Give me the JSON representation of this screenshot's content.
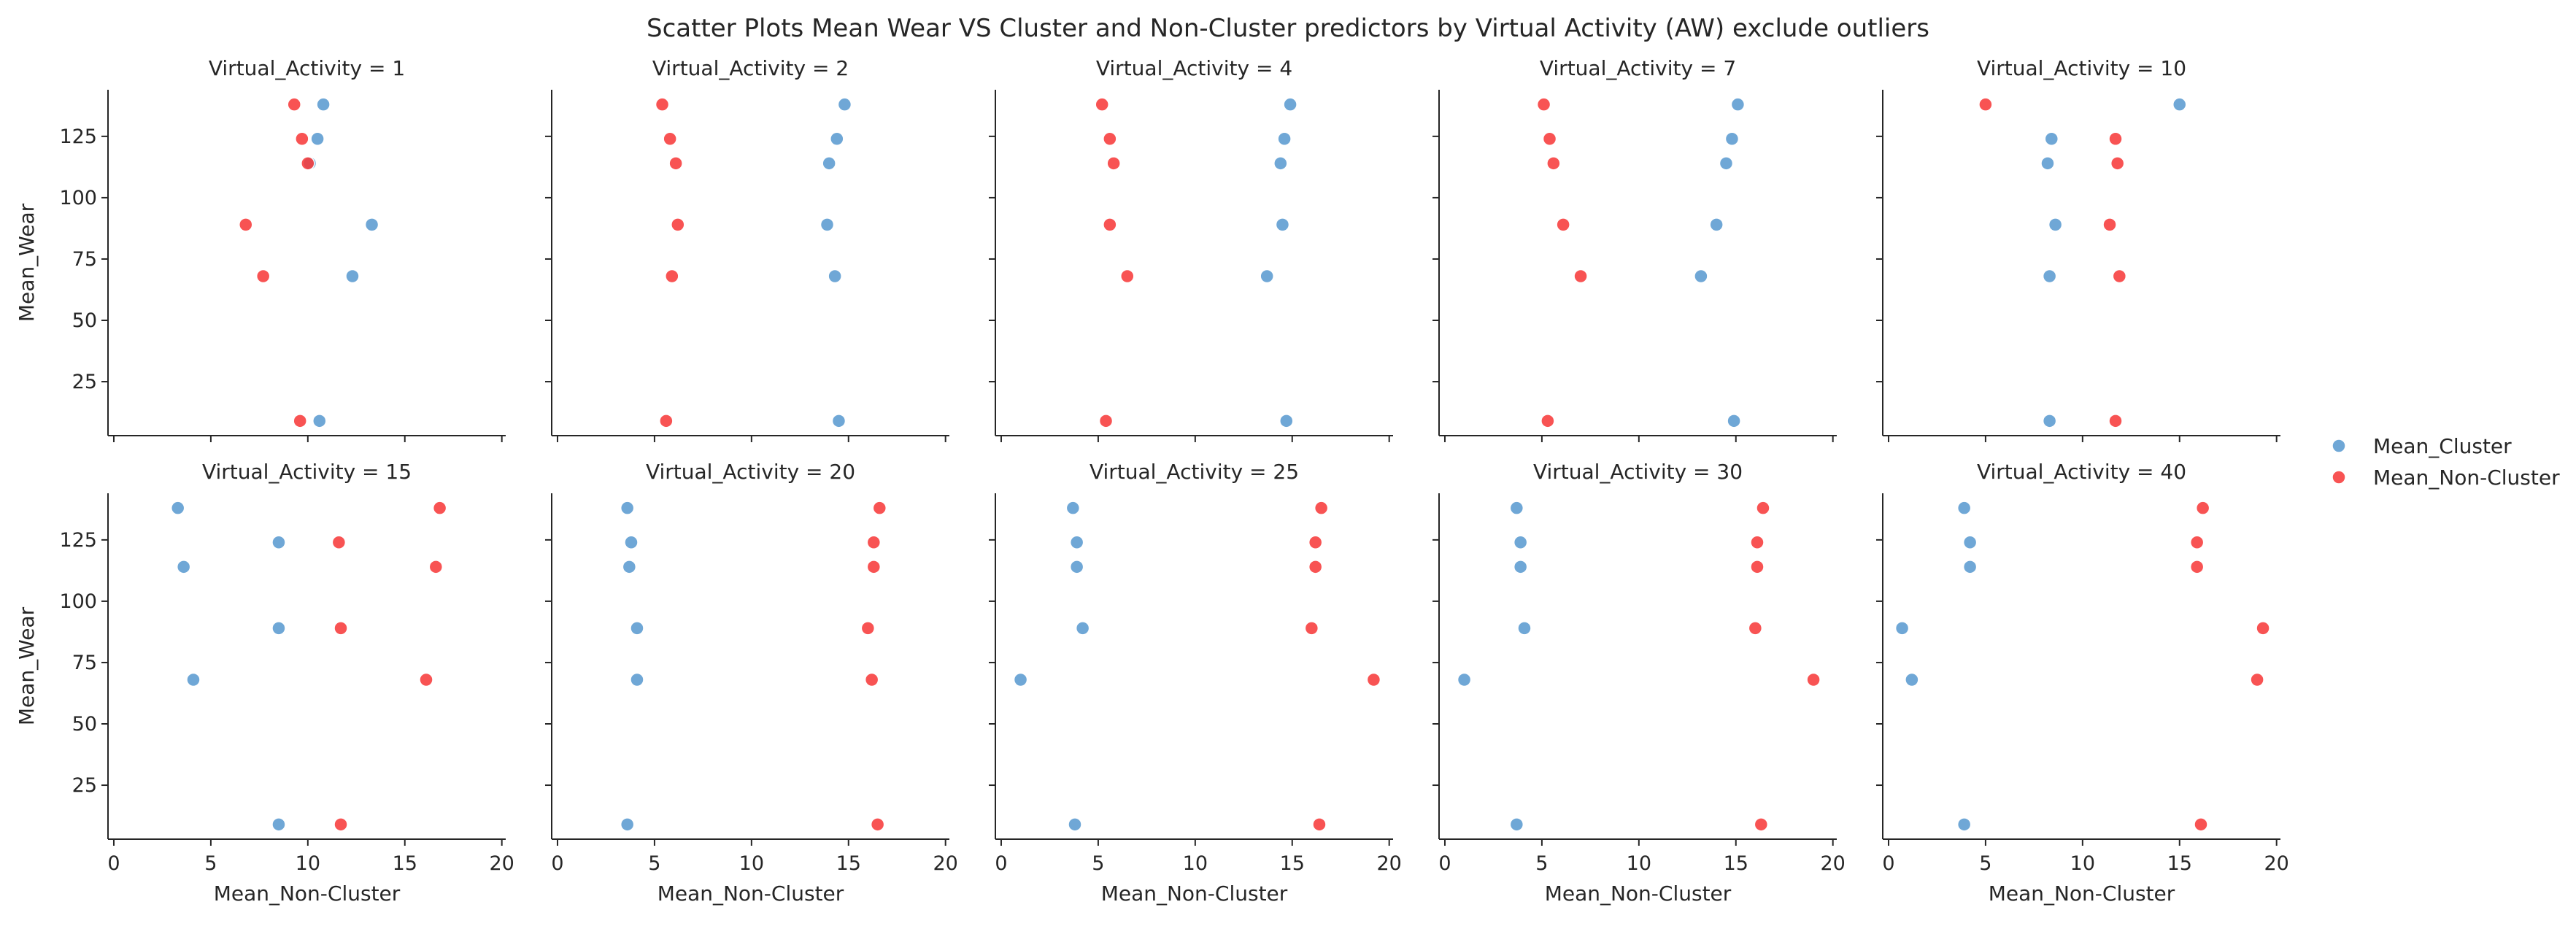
{
  "chart_data": {
    "type": "scatter",
    "title": "Scatter Plots Mean Wear VS Cluster and Non-Cluster predictors by Virtual Activity (AW) exclude outliers",
    "facet_title_prefix": "Virtual_Activity = ",
    "xlabel": "Mean_Non-Cluster",
    "ylabel": "Mean_Wear",
    "xlim": [
      -0.3,
      20.2
    ],
    "ylim": [
      3,
      144
    ],
    "xticks": [
      0,
      5,
      10,
      15,
      20
    ],
    "yticks": [
      25,
      50,
      75,
      100,
      125
    ],
    "legend_position": "right",
    "series": [
      {
        "name": "Mean_Cluster",
        "color": "#5b9bd0"
      },
      {
        "name": "Mean_Non-Cluster",
        "color": "#f73b3b"
      }
    ],
    "panels": [
      {
        "facet": "1",
        "Mean_Cluster": [
          [
            10.8,
            138
          ],
          [
            10.5,
            124
          ],
          [
            10.1,
            114
          ],
          [
            13.3,
            89
          ],
          [
            12.3,
            68
          ],
          [
            10.6,
            9
          ]
        ],
        "Mean_Non-Cluster": [
          [
            9.3,
            138
          ],
          [
            9.7,
            124
          ],
          [
            10.0,
            114
          ],
          [
            6.8,
            89
          ],
          [
            7.7,
            68
          ],
          [
            9.6,
            9
          ]
        ]
      },
      {
        "facet": "2",
        "Mean_Cluster": [
          [
            14.8,
            138
          ],
          [
            14.4,
            124
          ],
          [
            14.0,
            114
          ],
          [
            13.9,
            89
          ],
          [
            14.3,
            68
          ],
          [
            14.5,
            9
          ]
        ],
        "Mean_Non-Cluster": [
          [
            5.4,
            138
          ],
          [
            5.8,
            124
          ],
          [
            6.1,
            114
          ],
          [
            6.2,
            89
          ],
          [
            5.9,
            68
          ],
          [
            5.6,
            9
          ]
        ]
      },
      {
        "facet": "4",
        "Mean_Cluster": [
          [
            14.9,
            138
          ],
          [
            14.6,
            124
          ],
          [
            14.4,
            114
          ],
          [
            14.5,
            89
          ],
          [
            13.7,
            68
          ],
          [
            14.7,
            9
          ]
        ],
        "Mean_Non-Cluster": [
          [
            5.2,
            138
          ],
          [
            5.6,
            124
          ],
          [
            5.8,
            114
          ],
          [
            5.6,
            89
          ],
          [
            6.5,
            68
          ],
          [
            5.4,
            9
          ]
        ]
      },
      {
        "facet": "7",
        "Mean_Cluster": [
          [
            15.1,
            138
          ],
          [
            14.8,
            124
          ],
          [
            14.5,
            114
          ],
          [
            14.0,
            89
          ],
          [
            13.2,
            68
          ],
          [
            14.9,
            9
          ]
        ],
        "Mean_Non-Cluster": [
          [
            5.1,
            138
          ],
          [
            5.4,
            124
          ],
          [
            5.6,
            114
          ],
          [
            6.1,
            89
          ],
          [
            7.0,
            68
          ],
          [
            5.3,
            9
          ]
        ]
      },
      {
        "facet": "10",
        "Mean_Cluster": [
          [
            15.0,
            138
          ],
          [
            8.4,
            124
          ],
          [
            8.2,
            114
          ],
          [
            8.6,
            89
          ],
          [
            8.3,
            68
          ],
          [
            8.3,
            9
          ]
        ],
        "Mean_Non-Cluster": [
          [
            5.0,
            138
          ],
          [
            11.7,
            124
          ],
          [
            11.8,
            114
          ],
          [
            11.4,
            89
          ],
          [
            11.9,
            68
          ],
          [
            11.7,
            9
          ]
        ]
      },
      {
        "facet": "15",
        "Mean_Cluster": [
          [
            3.3,
            138
          ],
          [
            8.5,
            124
          ],
          [
            3.6,
            114
          ],
          [
            8.5,
            89
          ],
          [
            4.1,
            68
          ],
          [
            8.5,
            9
          ]
        ],
        "Mean_Non-Cluster": [
          [
            16.8,
            138
          ],
          [
            11.6,
            124
          ],
          [
            16.6,
            114
          ],
          [
            11.7,
            89
          ],
          [
            16.1,
            68
          ],
          [
            11.7,
            9
          ]
        ]
      },
      {
        "facet": "20",
        "Mean_Cluster": [
          [
            3.6,
            138
          ],
          [
            3.8,
            124
          ],
          [
            3.7,
            114
          ],
          [
            4.1,
            89
          ],
          [
            4.1,
            68
          ],
          [
            3.6,
            9
          ]
        ],
        "Mean_Non-Cluster": [
          [
            16.6,
            138
          ],
          [
            16.3,
            124
          ],
          [
            16.3,
            114
          ],
          [
            16.0,
            89
          ],
          [
            16.2,
            68
          ],
          [
            16.5,
            9
          ]
        ]
      },
      {
        "facet": "25",
        "Mean_Cluster": [
          [
            3.7,
            138
          ],
          [
            3.9,
            124
          ],
          [
            3.9,
            114
          ],
          [
            4.2,
            89
          ],
          [
            1.0,
            68
          ],
          [
            3.8,
            9
          ]
        ],
        "Mean_Non-Cluster": [
          [
            16.5,
            138
          ],
          [
            16.2,
            124
          ],
          [
            16.2,
            114
          ],
          [
            16.0,
            89
          ],
          [
            19.2,
            68
          ],
          [
            16.4,
            9
          ]
        ]
      },
      {
        "facet": "30",
        "Mean_Cluster": [
          [
            3.7,
            138
          ],
          [
            3.9,
            124
          ],
          [
            3.9,
            114
          ],
          [
            4.1,
            89
          ],
          [
            1.0,
            68
          ],
          [
            3.7,
            9
          ]
        ],
        "Mean_Non-Cluster": [
          [
            16.4,
            138
          ],
          [
            16.1,
            124
          ],
          [
            16.1,
            114
          ],
          [
            16.0,
            89
          ],
          [
            19.0,
            68
          ],
          [
            16.3,
            9
          ]
        ]
      },
      {
        "facet": "40",
        "Mean_Cluster": [
          [
            3.9,
            138
          ],
          [
            4.2,
            124
          ],
          [
            4.2,
            114
          ],
          [
            0.7,
            89
          ],
          [
            1.2,
            68
          ],
          [
            3.9,
            9
          ]
        ],
        "Mean_Non-Cluster": [
          [
            16.2,
            138
          ],
          [
            15.9,
            124
          ],
          [
            15.9,
            114
          ],
          [
            19.3,
            89
          ],
          [
            19.0,
            68
          ],
          [
            16.1,
            9
          ]
        ]
      }
    ]
  }
}
